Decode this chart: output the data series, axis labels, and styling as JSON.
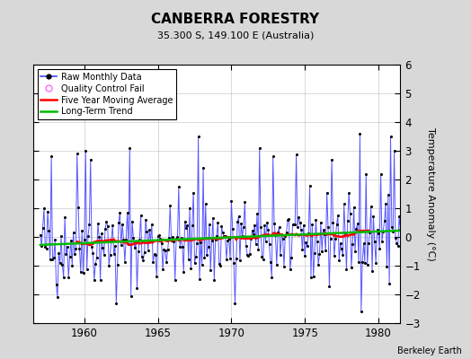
{
  "title": "CANBERRA FORESTRY",
  "subtitle": "35.300 S, 149.100 E (Australia)",
  "ylabel": "Temperature Anomaly (°C)",
  "credit": "Berkeley Earth",
  "ylim": [
    -3,
    6
  ],
  "yticks": [
    -3,
    -2,
    -1,
    0,
    1,
    2,
    3,
    4,
    5,
    6
  ],
  "xlim": [
    1956.5,
    1981.5
  ],
  "xticks": [
    1960,
    1965,
    1970,
    1975,
    1980
  ],
  "bg_color": "#d8d8d8",
  "plot_bg_color": "#ffffff",
  "raw_line_color": "#4444ff",
  "raw_dot_color": "#000000",
  "moving_avg_color": "#ff0000",
  "trend_color": "#00bb00",
  "qc_color": "#ff66ff",
  "start_year": 1957,
  "n_months": 300,
  "seed": 42
}
